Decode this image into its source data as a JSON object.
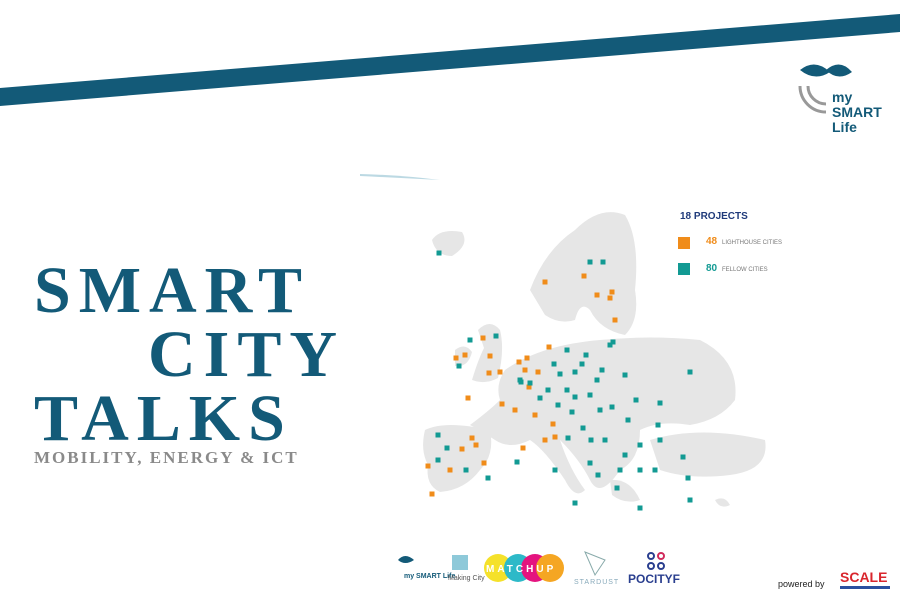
{
  "title": {
    "line1": "SMART",
    "line2": "CITY",
    "line3": "TALKS",
    "subtitle": "MOBILITY, ENERGY & ICT"
  },
  "map_legend": {
    "heading": "18 PROJECTS",
    "items": [
      {
        "count": "48",
        "label": "LIGHTHOUSE CITIES"
      },
      {
        "count": "80",
        "label": "FELLOW CITIES"
      }
    ]
  },
  "top_logo": {
    "line1": "my",
    "line2": "SMART",
    "line3": "Life"
  },
  "partner_logos": [
    "my SMART Life",
    "Making City",
    "MATCHUP",
    "STARDUST",
    "POCITYF"
  ],
  "footer": {
    "powered_by": "powered by",
    "brand": "SCALE"
  }
}
